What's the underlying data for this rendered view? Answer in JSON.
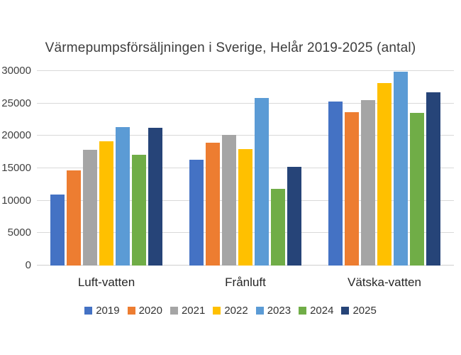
{
  "chart_data": {
    "type": "bar",
    "title": "Värmepumpsförsäljningen i Sverige, Helår 2019-2025 (antal)",
    "categories": [
      "Luft-vatten",
      "Frånluft",
      "Vätska-vatten"
    ],
    "series": [
      {
        "name": "2019",
        "color": "#4472C4",
        "values": [
          11000,
          16300,
          25300
        ]
      },
      {
        "name": "2020",
        "color": "#ED7D31",
        "values": [
          14700,
          18900,
          23700
        ]
      },
      {
        "name": "2021",
        "color": "#A5A5A5",
        "values": [
          17800,
          20100,
          25500
        ]
      },
      {
        "name": "2022",
        "color": "#FFC000",
        "values": [
          19200,
          18000,
          28100
        ]
      },
      {
        "name": "2023",
        "color": "#5B9BD5",
        "values": [
          21300,
          25800,
          29900
        ]
      },
      {
        "name": "2024",
        "color": "#70AD47",
        "values": [
          17100,
          11800,
          23500
        ]
      },
      {
        "name": "2025",
        "color": "#264478",
        "values": [
          21200,
          15200,
          26700
        ]
      }
    ],
    "ylim": [
      0,
      30000
    ],
    "yticks": [
      0,
      5000,
      10000,
      15000,
      20000,
      25000,
      30000
    ],
    "ytick_labels": [
      "0",
      "5000",
      "10000",
      "15000",
      "20000",
      "25000",
      "30000"
    ],
    "grid": true,
    "legend_position": "bottom",
    "grid_color": "#D9D9D9",
    "background_color": "#FFFFFF"
  }
}
